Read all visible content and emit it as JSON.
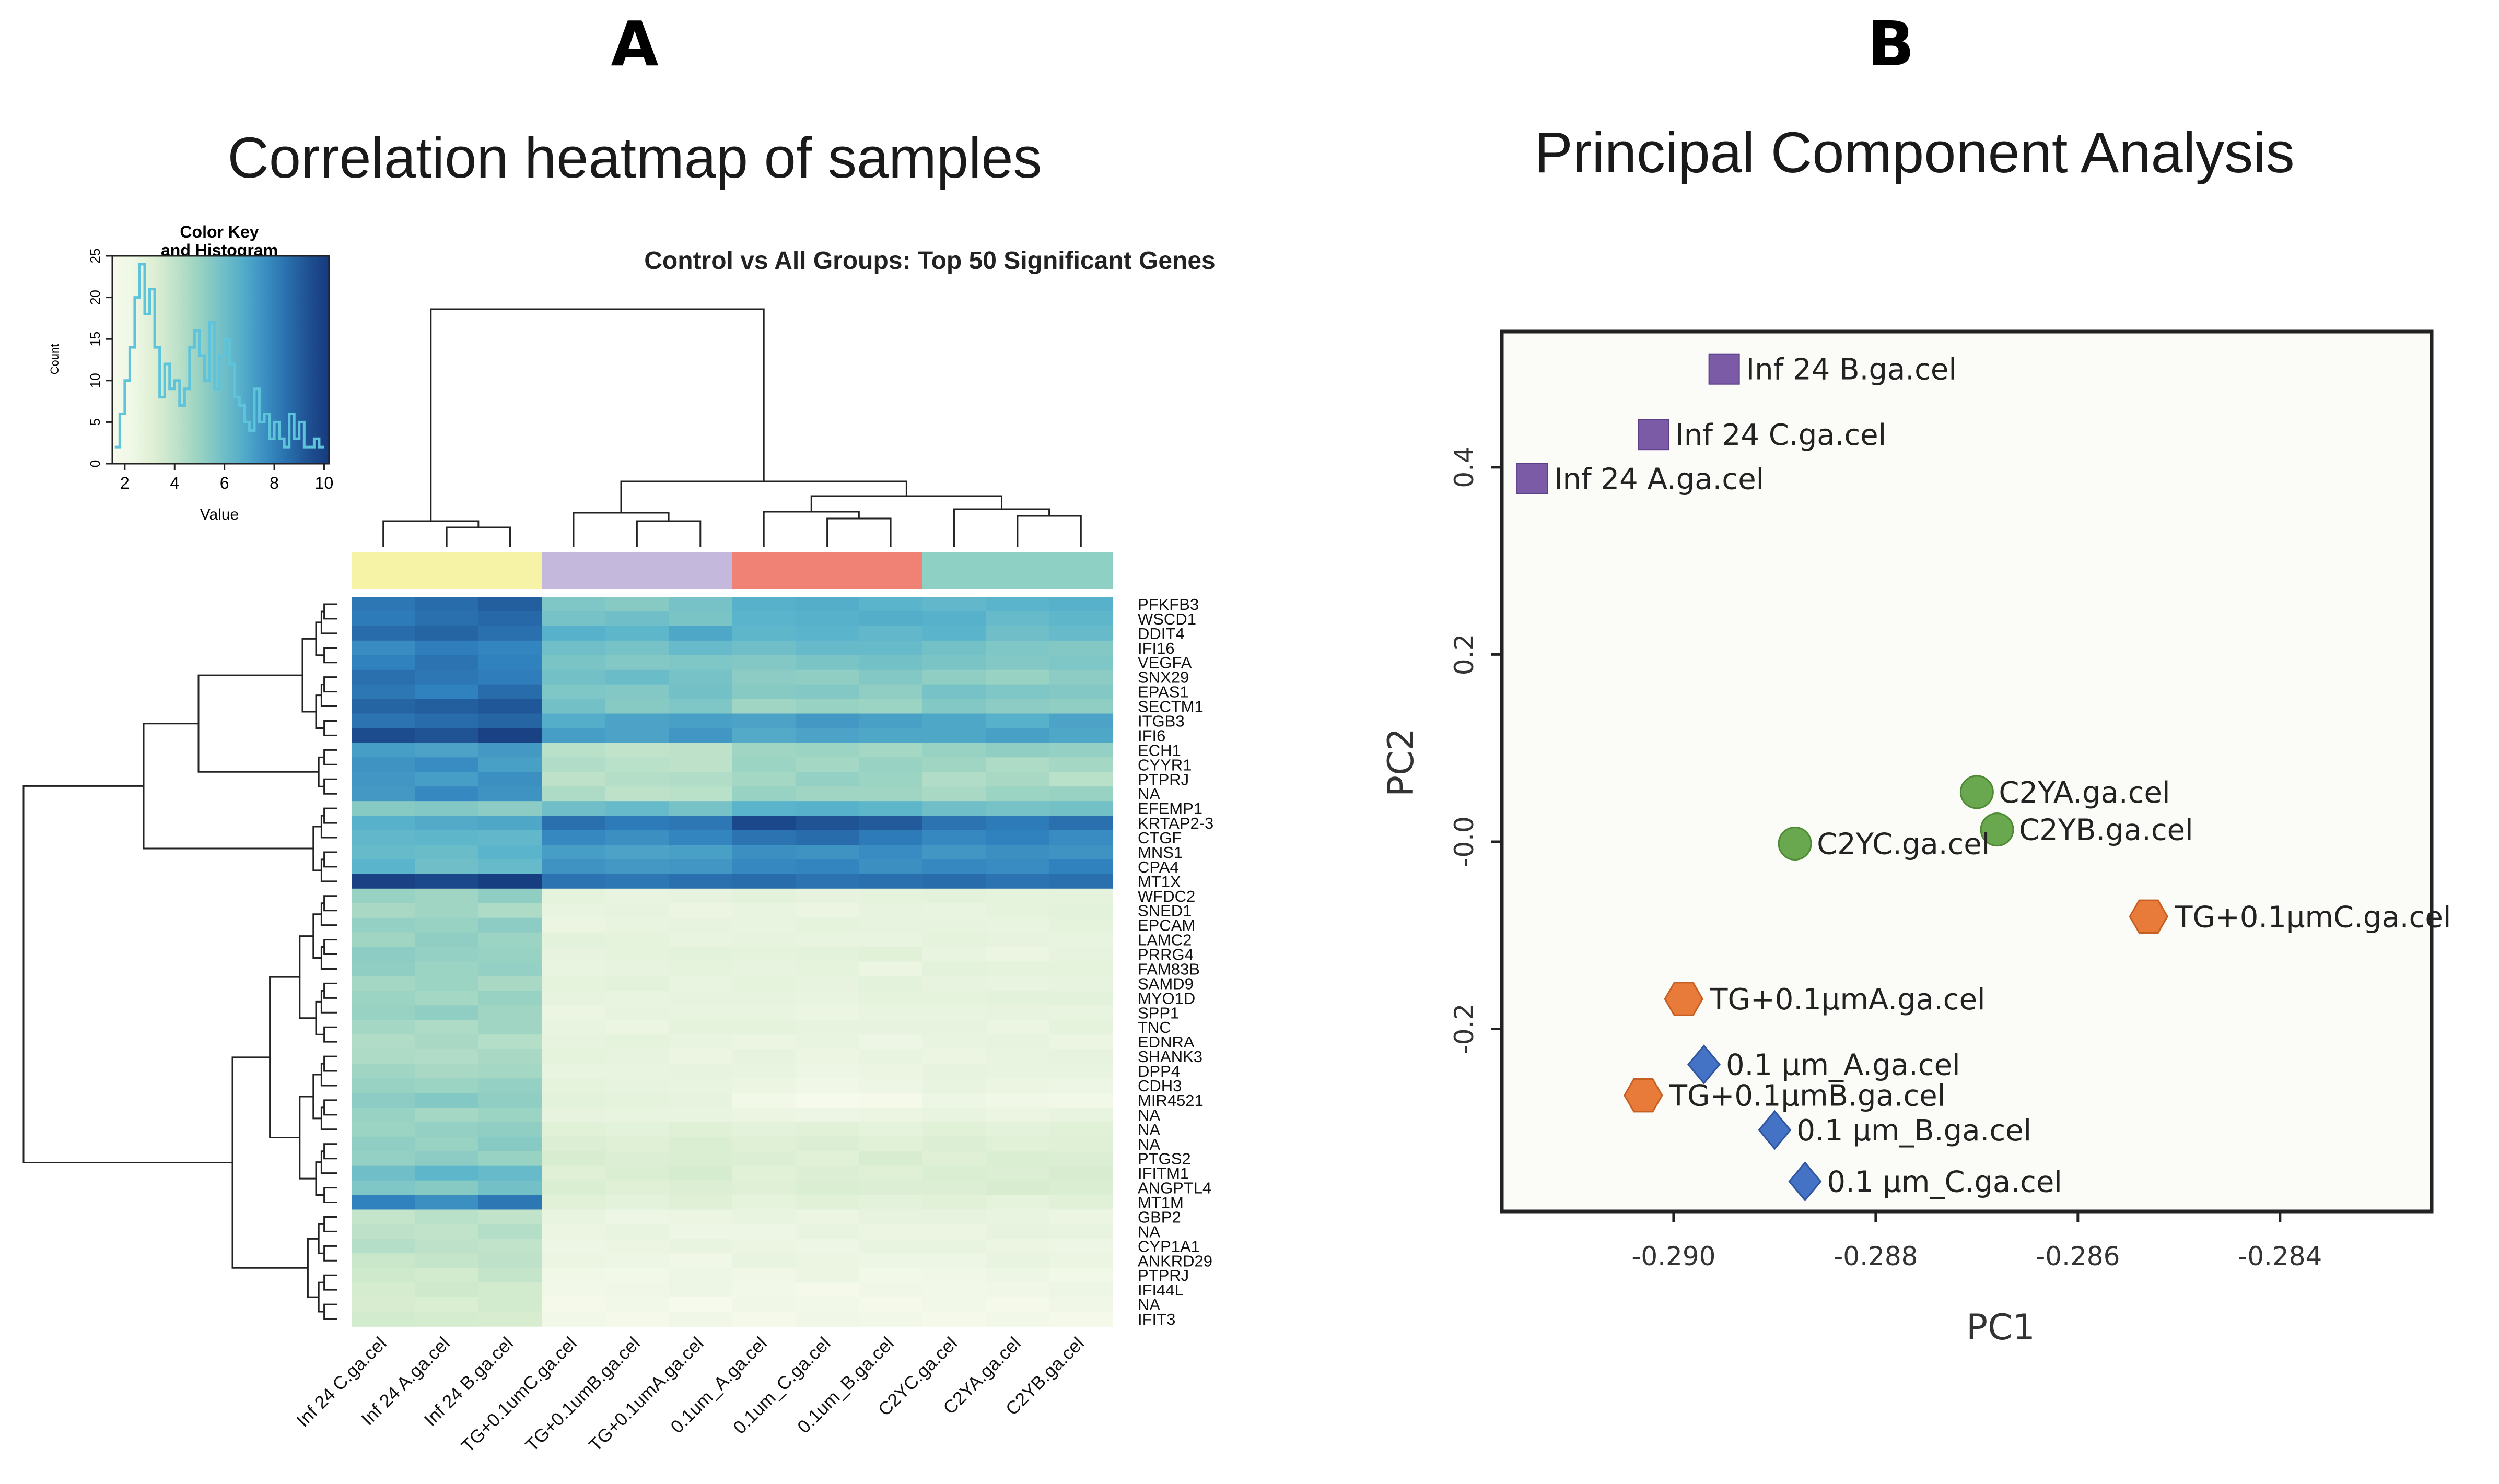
{
  "panels": {
    "a": {
      "letter": "A",
      "title": "Correlation heatmap of samples"
    },
    "b": {
      "letter": "B",
      "title": "Principal Component Analysis"
    }
  },
  "colors": {
    "group_control": "#f6f3a6",
    "group_tg": "#c4b9dc",
    "group_um": "#ef8275",
    "group_c2y": "#8fd0c4",
    "pca_inf": "#7b5aa6",
    "pca_c2y": "#6aa84f",
    "pca_tg": "#e97b3a",
    "pca_um": "#4472c4"
  },
  "chart_data": [
    {
      "type": "heatmap",
      "title": "Control vs All Groups: Top 50 Significant Genes",
      "columns": [
        "Inf 24 C.ga.cel",
        "Inf 24 A.ga.cel",
        "Inf 24 B.ga.cel",
        "TG+0.1umC.ga.cel",
        "TG+0.1umB.ga.cel",
        "TG+0.1umA.ga.cel",
        "0.1um_A.ga.cel",
        "0.1um_C.ga.cel",
        "0.1um_B.ga.cel",
        "C2YC.ga.cel",
        "C2YA.ga.cel",
        "C2YB.ga.cel"
      ],
      "column_groups": [
        "control",
        "control",
        "control",
        "tg",
        "tg",
        "tg",
        "um",
        "um",
        "um",
        "c2y",
        "c2y",
        "c2y"
      ],
      "rows": [
        "PFKFB3",
        "WSCD1",
        "DDIT4",
        "IFI16",
        "VEGFA",
        "SNX29",
        "EPAS1",
        "SECTM1",
        "ITGB3",
        "IFI6",
        "ECH1",
        "CYYR1",
        "PTPRJ",
        "NA",
        "EFEMP1",
        "KRTAP2-3",
        "CTGF",
        "MNS1",
        "CPA4",
        "MT1X",
        "WFDC2",
        "SNED1",
        "EPCAM",
        "LAMC2",
        "PRRG4",
        "FAM83B",
        "SAMD9",
        "MYO1D",
        "SPP1",
        "TNC",
        "EDNRA",
        "SHANK3",
        "DPP4",
        "CDH3",
        "MIR4521",
        "NA",
        "NA",
        "NA",
        "PTGS2",
        "IFITM1",
        "ANGPTL4",
        "MT1M",
        "GBP2",
        "NA",
        "CYP1A1",
        "ANKRD29",
        "PTPRJ",
        "IFI44L",
        "NA",
        "IFIT3"
      ],
      "values": [
        [
          8.3,
          8.6,
          9.0,
          5.6,
          5.4,
          5.8,
          6.6,
          6.7,
          6.5,
          6.3,
          6.5,
          6.6
        ],
        [
          8.2,
          8.5,
          8.7,
          5.8,
          6.0,
          5.7,
          6.5,
          6.6,
          6.7,
          6.6,
          6.2,
          6.4
        ],
        [
          8.6,
          8.8,
          8.5,
          6.6,
          6.4,
          6.9,
          6.4,
          6.5,
          6.3,
          6.5,
          6.0,
          6.2
        ],
        [
          7.7,
          8.1,
          7.9,
          6.0,
          5.8,
          6.2,
          6.0,
          6.2,
          6.2,
          5.9,
          5.6,
          5.5
        ],
        [
          8.0,
          8.4,
          8.0,
          5.7,
          5.5,
          5.6,
          5.5,
          5.7,
          5.9,
          5.7,
          5.5,
          5.6
        ],
        [
          8.5,
          8.3,
          8.1,
          5.9,
          6.1,
          5.8,
          5.3,
          5.2,
          5.5,
          5.2,
          5.0,
          5.3
        ],
        [
          8.3,
          8.0,
          8.6,
          5.6,
          5.5,
          5.9,
          5.4,
          5.5,
          5.2,
          5.8,
          5.6,
          5.5
        ],
        [
          8.8,
          9.0,
          9.2,
          5.9,
          5.4,
          5.6,
          4.8,
          5.0,
          4.9,
          5.5,
          5.3,
          5.2
        ],
        [
          8.4,
          8.6,
          8.8,
          6.7,
          7.0,
          7.1,
          7.0,
          7.3,
          7.1,
          6.9,
          6.6,
          7.0
        ],
        [
          9.5,
          9.3,
          9.8,
          7.2,
          7.0,
          7.4,
          6.8,
          7.0,
          6.9,
          6.9,
          7.1,
          6.9
        ],
        [
          7.2,
          7.0,
          7.3,
          4.2,
          4.0,
          4.1,
          4.8,
          4.9,
          4.7,
          5.0,
          5.2,
          5.1
        ],
        [
          7.5,
          7.7,
          7.1,
          4.4,
          4.2,
          4.1,
          4.9,
          4.7,
          5.0,
          4.8,
          4.5,
          4.7
        ],
        [
          7.4,
          7.2,
          7.6,
          4.1,
          4.3,
          4.4,
          4.7,
          5.1,
          4.9,
          4.4,
          4.6,
          4.2
        ],
        [
          7.3,
          7.8,
          7.5,
          4.5,
          4.1,
          4.2,
          5.0,
          4.8,
          4.8,
          4.6,
          4.9,
          5.0
        ],
        [
          5.4,
          5.5,
          5.3,
          6.0,
          6.2,
          5.8,
          6.5,
          6.6,
          6.4,
          6.0,
          5.8,
          5.9
        ],
        [
          6.6,
          6.8,
          6.9,
          8.5,
          8.2,
          8.3,
          9.6,
          9.3,
          9.1,
          8.4,
          8.2,
          8.5
        ],
        [
          6.3,
          6.4,
          6.3,
          7.8,
          7.6,
          7.9,
          8.4,
          8.6,
          8.2,
          7.8,
          8.0,
          7.7
        ],
        [
          6.2,
          6.1,
          6.5,
          7.2,
          7.0,
          7.1,
          7.6,
          7.5,
          7.7,
          7.4,
          7.6,
          7.5
        ],
        [
          6.5,
          6.0,
          6.2,
          7.5,
          7.3,
          7.4,
          7.8,
          7.9,
          7.6,
          7.8,
          7.7,
          8.0
        ],
        [
          9.8,
          9.6,
          9.9,
          8.4,
          8.3,
          8.5,
          8.6,
          8.4,
          8.5,
          8.6,
          8.4,
          8.5
        ],
        [
          5.0,
          4.8,
          5.2,
          2.8,
          2.6,
          2.7,
          2.9,
          2.7,
          2.8,
          2.9,
          2.8,
          2.8
        ],
        [
          4.6,
          4.8,
          4.5,
          2.6,
          2.7,
          2.5,
          2.6,
          2.5,
          2.7,
          2.6,
          2.8,
          2.9
        ],
        [
          5.1,
          5.0,
          5.3,
          2.5,
          2.6,
          2.7,
          2.6,
          2.8,
          2.7,
          2.7,
          2.6,
          2.8
        ],
        [
          4.8,
          5.2,
          4.9,
          2.9,
          2.8,
          2.6,
          2.7,
          2.6,
          2.6,
          2.8,
          2.7,
          2.6
        ],
        [
          5.3,
          5.1,
          5.0,
          2.7,
          2.8,
          2.9,
          2.8,
          2.9,
          3.0,
          2.6,
          2.5,
          2.7
        ],
        [
          5.2,
          4.9,
          5.1,
          2.6,
          2.7,
          2.8,
          2.7,
          2.8,
          2.5,
          2.9,
          2.8,
          2.8
        ],
        [
          4.7,
          4.9,
          4.6,
          2.8,
          2.9,
          2.6,
          2.8,
          2.7,
          2.9,
          2.7,
          2.6,
          2.7
        ],
        [
          4.9,
          4.7,
          5.0,
          2.7,
          2.6,
          2.7,
          2.7,
          2.6,
          2.8,
          2.8,
          2.9,
          2.9
        ],
        [
          5.0,
          5.2,
          4.8,
          2.5,
          2.7,
          2.6,
          2.6,
          2.5,
          2.6,
          2.6,
          2.7,
          2.6
        ],
        [
          4.7,
          4.5,
          4.8,
          2.6,
          2.5,
          2.8,
          2.8,
          2.7,
          2.7,
          2.7,
          2.5,
          2.8
        ],
        [
          4.4,
          4.6,
          4.3,
          2.7,
          2.8,
          2.6,
          2.5,
          2.6,
          2.4,
          2.6,
          2.7,
          2.5
        ],
        [
          4.5,
          4.4,
          4.6,
          2.8,
          2.7,
          2.5,
          2.7,
          2.5,
          2.6,
          2.5,
          2.6,
          2.7
        ],
        [
          4.8,
          4.6,
          4.7,
          2.6,
          2.6,
          2.7,
          2.6,
          2.4,
          2.5,
          2.7,
          2.6,
          2.6
        ],
        [
          5.0,
          4.9,
          5.1,
          2.8,
          2.7,
          2.6,
          2.5,
          2.3,
          2.4,
          2.6,
          2.5,
          2.4
        ],
        [
          5.3,
          5.5,
          5.2,
          2.9,
          2.8,
          2.7,
          2.2,
          2.0,
          2.1,
          2.4,
          2.3,
          2.2
        ],
        [
          5.0,
          4.7,
          4.9,
          2.7,
          2.6,
          2.6,
          2.5,
          2.4,
          2.5,
          2.6,
          2.5,
          2.6
        ],
        [
          4.9,
          5.1,
          5.2,
          3.0,
          2.9,
          3.1,
          2.9,
          3.0,
          2.8,
          3.0,
          2.9,
          3.0
        ],
        [
          5.2,
          5.0,
          5.4,
          3.2,
          3.1,
          3.3,
          3.1,
          3.2,
          3.0,
          3.2,
          3.0,
          3.1
        ],
        [
          5.1,
          5.3,
          5.0,
          3.4,
          3.2,
          3.3,
          3.2,
          3.0,
          3.4,
          3.1,
          3.3,
          3.2
        ],
        [
          6.0,
          6.4,
          6.2,
          3.1,
          3.3,
          3.5,
          3.0,
          3.2,
          3.1,
          3.3,
          3.2,
          3.4
        ],
        [
          5.6,
          5.4,
          5.9,
          3.3,
          3.1,
          3.2,
          3.1,
          3.3,
          3.2,
          3.2,
          3.4,
          3.3
        ],
        [
          8.0,
          7.6,
          8.3,
          3.0,
          2.9,
          3.1,
          2.8,
          3.0,
          2.9,
          3.0,
          2.8,
          3.0
        ],
        [
          3.9,
          4.2,
          4.0,
          2.6,
          2.4,
          2.5,
          2.6,
          2.5,
          2.7,
          2.7,
          2.6,
          2.5
        ],
        [
          4.1,
          4.0,
          4.3,
          2.5,
          2.6,
          2.4,
          2.4,
          2.6,
          2.5,
          2.5,
          2.7,
          2.6
        ],
        [
          4.3,
          4.1,
          4.0,
          2.4,
          2.5,
          2.6,
          2.5,
          2.4,
          2.6,
          2.6,
          2.5,
          2.4
        ],
        [
          3.8,
          3.9,
          4.1,
          2.5,
          2.4,
          2.3,
          2.6,
          2.5,
          2.4,
          2.4,
          2.6,
          2.5
        ],
        [
          3.7,
          3.6,
          3.9,
          2.3,
          2.2,
          2.4,
          2.3,
          2.5,
          2.2,
          2.3,
          2.4,
          2.2
        ],
        [
          3.5,
          3.7,
          3.6,
          2.2,
          2.3,
          2.4,
          2.2,
          2.1,
          2.3,
          2.2,
          2.3,
          2.4
        ],
        [
          3.4,
          3.3,
          3.6,
          2.1,
          2.2,
          2.0,
          2.3,
          2.2,
          2.1,
          2.2,
          2.1,
          2.3
        ],
        [
          3.6,
          3.5,
          3.4,
          2.2,
          2.1,
          2.3,
          2.1,
          2.3,
          2.2,
          2.1,
          2.2,
          2.1
        ]
      ],
      "color_key": {
        "title_line1": "Color Key",
        "title_line2": "and Histogram",
        "xlabel": "Value",
        "ylabel": "Count",
        "x_ticks": [
          2,
          4,
          6,
          8,
          10
        ],
        "y_ticks": [
          0,
          5,
          10,
          15,
          20,
          25
        ],
        "x_range": [
          1.5,
          10.2
        ],
        "y_range": [
          0,
          25
        ],
        "hist_x": [
          1.7,
          1.9,
          2.1,
          2.3,
          2.5,
          2.7,
          2.9,
          3.1,
          3.3,
          3.5,
          3.7,
          3.9,
          4.1,
          4.3,
          4.5,
          4.7,
          4.9,
          5.1,
          5.3,
          5.5,
          5.7,
          5.9,
          6.1,
          6.3,
          6.5,
          6.7,
          6.9,
          7.1,
          7.3,
          7.5,
          7.7,
          7.9,
          8.1,
          8.3,
          8.5,
          8.7,
          8.9,
          9.1,
          9.3,
          9.5,
          9.7,
          9.9
        ],
        "hist_y": [
          2,
          6,
          10,
          14,
          20,
          24,
          18,
          21,
          14,
          8,
          12,
          9,
          10,
          7,
          9,
          14,
          16,
          13,
          10,
          17,
          9,
          13,
          15,
          12,
          8,
          7,
          5,
          4,
          9,
          5,
          6,
          3,
          5,
          3,
          2,
          6,
          3,
          5,
          2,
          2,
          3,
          2
        ]
      }
    },
    {
      "type": "scatter",
      "title": "Principal Component Analysis",
      "xlabel": "PC1",
      "ylabel": "PC2",
      "xlim": [
        -0.2917,
        -0.2825
      ],
      "ylim": [
        -0.395,
        0.545
      ],
      "x_ticks": [
        -0.29,
        -0.288,
        -0.286,
        -0.284
      ],
      "x_tick_labels": [
        "-0.290",
        "-0.288",
        "-0.286",
        "-0.284"
      ],
      "y_ticks": [
        0.4,
        0.2,
        0.0,
        -0.2
      ],
      "y_tick_labels": [
        "0.4",
        "0.2",
        "-0.0",
        "-0.2"
      ],
      "points": [
        {
          "label": "Inf 24 B.ga.cel",
          "pc1": -0.2895,
          "pc2": 0.505,
          "group": "inf",
          "shape": "square"
        },
        {
          "label": "Inf 24 C.ga.cel",
          "pc1": -0.2902,
          "pc2": 0.435,
          "group": "inf",
          "shape": "square"
        },
        {
          "label": "Inf 24 A.ga.cel",
          "pc1": -0.2914,
          "pc2": 0.388,
          "group": "inf",
          "shape": "square"
        },
        {
          "label": "C2YA.ga.cel",
          "pc1": -0.287,
          "pc2": 0.053,
          "group": "c2y",
          "shape": "circle"
        },
        {
          "label": "C2YB.ga.cel",
          "pc1": -0.2868,
          "pc2": 0.013,
          "group": "c2y",
          "shape": "circle"
        },
        {
          "label": "C2YC.ga.cel",
          "pc1": -0.2888,
          "pc2": -0.002,
          "group": "c2y",
          "shape": "circle"
        },
        {
          "label": "TG+0.1μmC.ga.cel",
          "pc1": -0.2853,
          "pc2": -0.08,
          "group": "tg",
          "shape": "hexagon"
        },
        {
          "label": "TG+0.1μmA.ga.cel",
          "pc1": -0.2899,
          "pc2": -0.168,
          "group": "tg",
          "shape": "hexagon"
        },
        {
          "label": "TG+0.1μmB.ga.cel",
          "pc1": -0.2903,
          "pc2": -0.271,
          "group": "tg",
          "shape": "hexagon"
        },
        {
          "label": "0.1 μm_A.ga.cel",
          "pc1": -0.2897,
          "pc2": -0.238,
          "group": "um",
          "shape": "diamond"
        },
        {
          "label": "0.1 μm_B.ga.cel",
          "pc1": -0.289,
          "pc2": -0.308,
          "group": "um",
          "shape": "diamond"
        },
        {
          "label": "0.1 μm_C.ga.cel",
          "pc1": -0.2887,
          "pc2": -0.363,
          "group": "um",
          "shape": "diamond"
        }
      ]
    }
  ]
}
